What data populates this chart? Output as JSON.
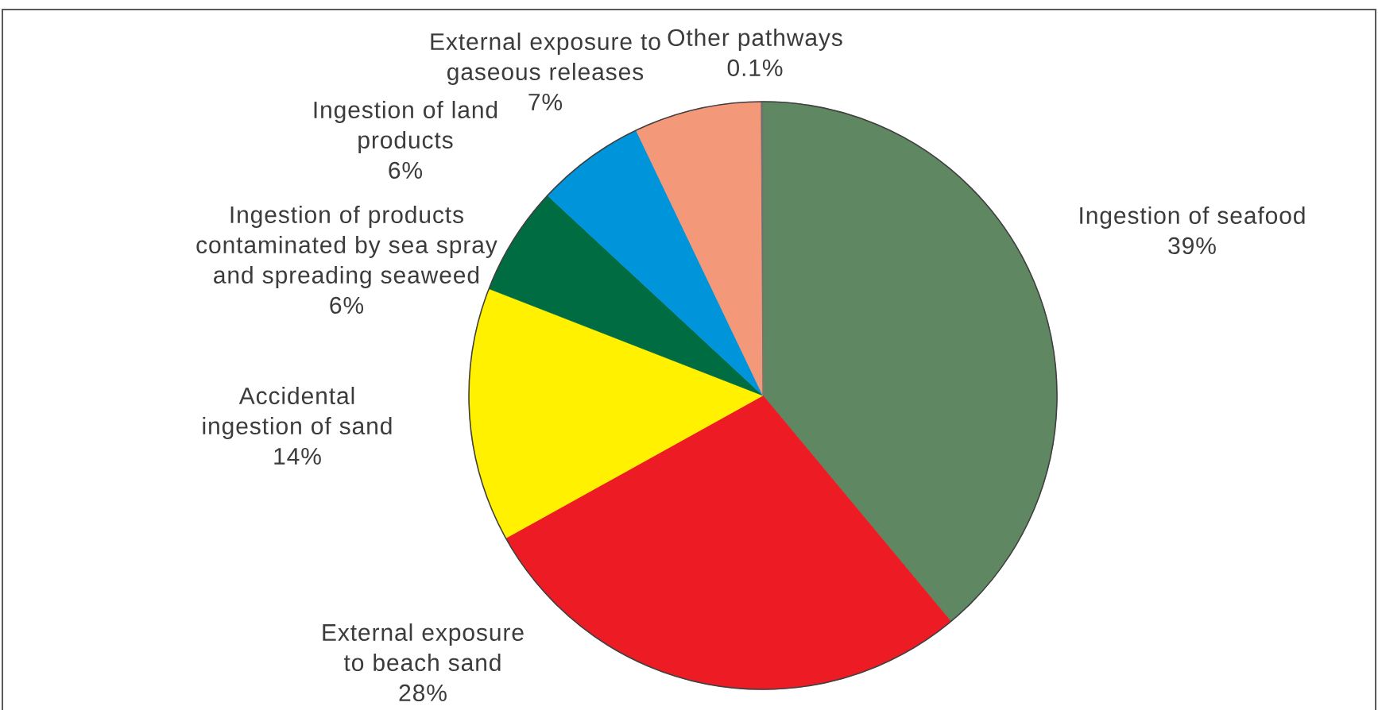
{
  "chart_data": {
    "type": "pie",
    "categories": [
      "Ingestion of seafood",
      "External exposure to beach sand",
      "Accidental ingestion of sand",
      "Ingestion of products contaminated by sea spray and spreading seaweed",
      "Ingestion of land products",
      "External exposure to gaseous releases",
      "Other pathways"
    ],
    "values": [
      39,
      28,
      14,
      6,
      6,
      7,
      0.1
    ],
    "value_labels": [
      "39%",
      "28%",
      "14%",
      "6%",
      "6%",
      "7%",
      "0.1%"
    ],
    "colors": [
      "#5f8862",
      "#ed1c24",
      "#fff100",
      "#006c42",
      "#0095da",
      "#f4987a",
      "#707070"
    ]
  }
}
